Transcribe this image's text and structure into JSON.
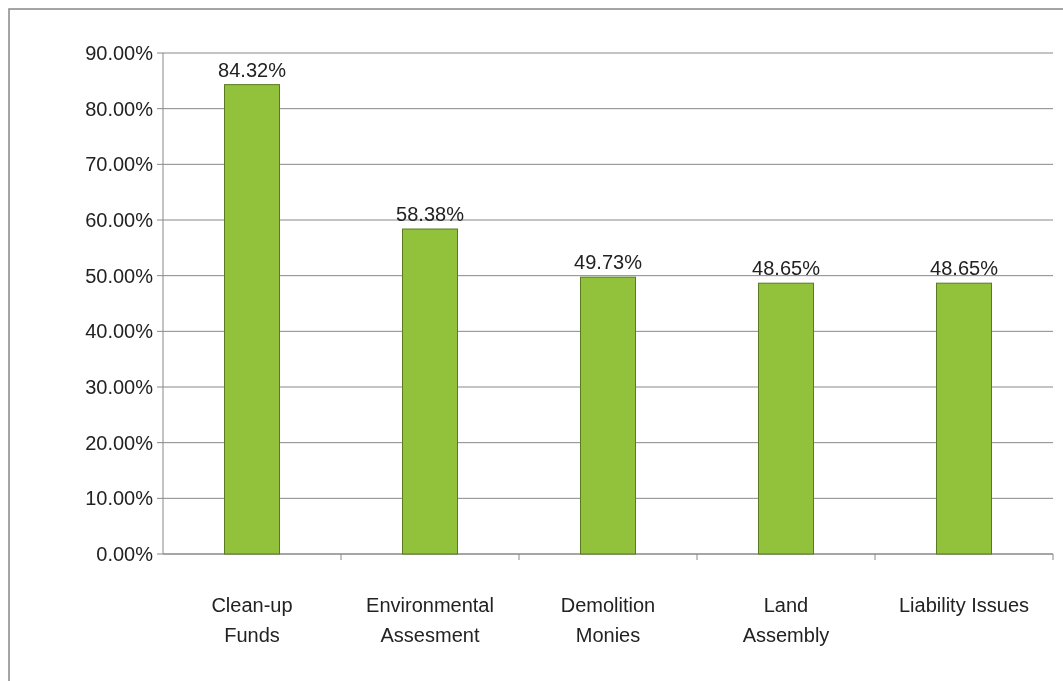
{
  "chart_data": {
    "type": "bar",
    "categories": [
      "Clean-up\nFunds",
      "Environmental\nAssesment",
      "Demolition\nMonies",
      "Land\nAssembly",
      "Liability Issues"
    ],
    "values": [
      84.32,
      58.38,
      49.73,
      48.65,
      48.65
    ],
    "value_labels": [
      "84.32%",
      "58.38%",
      "49.73%",
      "48.65%",
      "48.65%"
    ],
    "color": "#92c13c",
    "ylim": [
      0,
      90
    ],
    "yticks": [
      {
        "value": 0,
        "label": "0.00%"
      },
      {
        "value": 10,
        "label": "10.00%"
      },
      {
        "value": 20,
        "label": "20.00%"
      },
      {
        "value": 30,
        "label": "30.00%"
      },
      {
        "value": 40,
        "label": "40.00%"
      },
      {
        "value": 50,
        "label": "50.00%"
      },
      {
        "value": 60,
        "label": "60.00%"
      },
      {
        "value": 70,
        "label": "70.00%"
      },
      {
        "value": 80,
        "label": "80.00%"
      },
      {
        "value": 90,
        "label": "90.00%"
      }
    ],
    "grid": "y"
  }
}
